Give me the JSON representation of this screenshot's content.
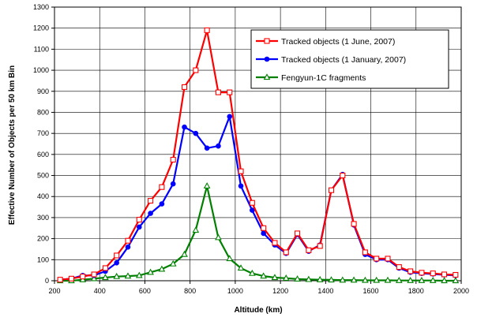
{
  "chart_data": {
    "type": "line",
    "title": "",
    "xlabel": "Altitude (km)",
    "ylabel": "Effective Number of Objects per 50 km Bin",
    "xlim": [
      200,
      2000
    ],
    "ylim": [
      0,
      1300
    ],
    "xticks": [
      200,
      400,
      600,
      800,
      1000,
      1200,
      1400,
      1600,
      1800,
      2000
    ],
    "yticks": [
      0,
      100,
      200,
      300,
      400,
      500,
      600,
      700,
      800,
      900,
      1000,
      1100,
      1200,
      1300
    ],
    "grid": true,
    "legend_position": "top-right",
    "x": [
      225,
      275,
      325,
      375,
      425,
      475,
      525,
      575,
      625,
      675,
      725,
      775,
      825,
      875,
      925,
      975,
      1025,
      1075,
      1125,
      1175,
      1225,
      1275,
      1325,
      1375,
      1425,
      1475,
      1525,
      1575,
      1625,
      1675,
      1725,
      1775,
      1825,
      1875,
      1925,
      1975
    ],
    "series": [
      {
        "name": "Tracked objects (1 June, 2007)",
        "color": "#ff0000",
        "marker": "open-square",
        "values": [
          5,
          10,
          20,
          30,
          60,
          120,
          190,
          290,
          380,
          445,
          575,
          920,
          1000,
          1190,
          895,
          895,
          520,
          370,
          250,
          180,
          135,
          225,
          145,
          165,
          430,
          500,
          270,
          135,
          105,
          105,
          65,
          45,
          38,
          35,
          30,
          28
        ]
      },
      {
        "name": "Tracked objects (1 January, 2007)",
        "color": "#0000ff",
        "marker": "filled-circle",
        "values": [
          5,
          10,
          25,
          25,
          45,
          85,
          160,
          255,
          320,
          365,
          460,
          730,
          700,
          630,
          640,
          780,
          450,
          335,
          225,
          170,
          130,
          220,
          140,
          170,
          430,
          505,
          265,
          125,
          100,
          100,
          60,
          40,
          35,
          32,
          28,
          25
        ]
      },
      {
        "name": "Fengyun-1C fragments",
        "color": "#008000",
        "marker": "open-triangle",
        "values": [
          0,
          0,
          5,
          10,
          15,
          20,
          22,
          25,
          40,
          55,
          80,
          125,
          240,
          450,
          205,
          105,
          60,
          35,
          22,
          15,
          12,
          8,
          6,
          5,
          4,
          3,
          3,
          2,
          2,
          2,
          1,
          1,
          1,
          1,
          0,
          0
        ]
      }
    ]
  }
}
